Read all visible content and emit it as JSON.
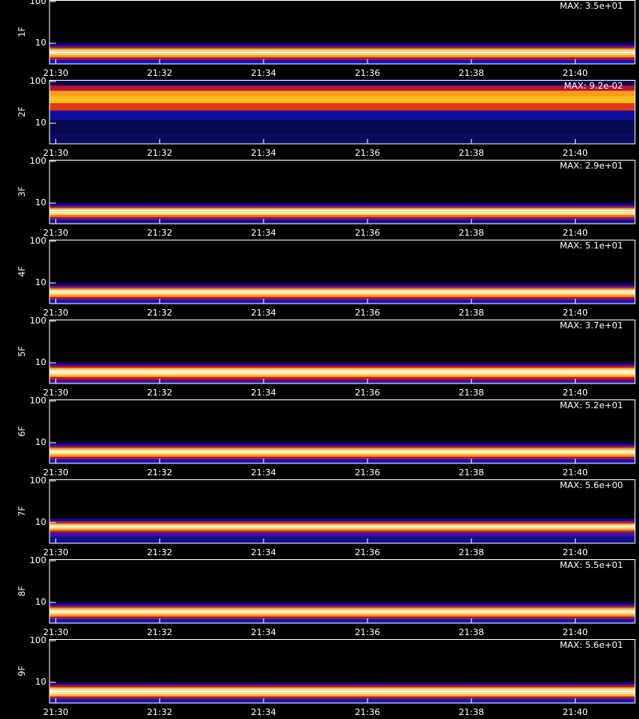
{
  "chart_data": [
    {
      "type": "heatmap",
      "ylabel": "1F",
      "annotation": "MAX: 3.5e+01",
      "log_y": true,
      "ylim": [
        3.2,
        109
      ],
      "yticks": [
        {
          "value": 10,
          "label": "10"
        },
        {
          "value": 100,
          "label": "100"
        }
      ],
      "xlim": [
        -0.12,
        11.15
      ],
      "xticks": [
        {
          "value": 0,
          "label": "21:30"
        },
        {
          "value": 2,
          "label": "21:32"
        },
        {
          "value": 4,
          "label": "21:34"
        },
        {
          "value": 6,
          "label": "21:36"
        },
        {
          "value": 8,
          "label": "21:38"
        },
        {
          "value": 10,
          "label": "21:40"
        }
      ],
      "ybins": [
        3.2,
        4,
        4.6,
        5.2,
        5.8,
        6.4,
        7,
        7.6,
        8.4,
        9.2,
        10.5,
        109
      ],
      "values": [
        0.25,
        0.45,
        0.7,
        0.85,
        1.0,
        0.9,
        0.7,
        0.45,
        0.25,
        0.1,
        0
      ]
    },
    {
      "type": "heatmap",
      "ylabel": "2F",
      "annotation": "MAX: 9.2e-02",
      "log_y": true,
      "ylim": [
        3.2,
        109
      ],
      "yticks": [
        {
          "value": 10,
          "label": "10"
        },
        {
          "value": 100,
          "label": "100"
        }
      ],
      "xlim": [
        -0.12,
        11.15
      ],
      "xticks": [
        {
          "value": 0,
          "label": "21:30"
        },
        {
          "value": 2,
          "label": "21:32"
        },
        {
          "value": 4,
          "label": "21:34"
        },
        {
          "value": 6,
          "label": "21:36"
        },
        {
          "value": 8,
          "label": "21:38"
        },
        {
          "value": 10,
          "label": "21:40"
        }
      ],
      "ybins": [
        3.2,
        6,
        12,
        20,
        30,
        45,
        60,
        80,
        109
      ],
      "values": [
        0.12,
        0.1,
        0.2,
        0.55,
        0.75,
        0.7,
        0.45,
        0.1
      ]
    },
    {
      "type": "heatmap",
      "ylabel": "3F",
      "annotation": "MAX: 2.9e+01",
      "log_y": true,
      "ylim": [
        3.2,
        109
      ],
      "yticks": [
        {
          "value": 10,
          "label": "10"
        },
        {
          "value": 100,
          "label": "100"
        }
      ],
      "xlim": [
        -0.12,
        11.15
      ],
      "xticks": [
        {
          "value": 0,
          "label": "21:30"
        },
        {
          "value": 2,
          "label": "21:32"
        },
        {
          "value": 4,
          "label": "21:34"
        },
        {
          "value": 6,
          "label": "21:36"
        },
        {
          "value": 8,
          "label": "21:38"
        },
        {
          "value": 10,
          "label": "21:40"
        }
      ],
      "ybins": [
        3.2,
        4,
        4.6,
        5.2,
        5.8,
        6.4,
        7,
        7.6,
        8.4,
        9.2,
        10.5,
        109
      ],
      "values": [
        0.2,
        0.4,
        0.65,
        0.85,
        0.95,
        1.0,
        0.75,
        0.45,
        0.25,
        0.1,
        0
      ]
    },
    {
      "type": "heatmap",
      "ylabel": "4F",
      "annotation": "MAX: 5.1e+01",
      "log_y": true,
      "ylim": [
        3.2,
        109
      ],
      "yticks": [
        {
          "value": 10,
          "label": "10"
        },
        {
          "value": 100,
          "label": "100"
        }
      ],
      "xlim": [
        -0.12,
        11.15
      ],
      "xticks": [
        {
          "value": 0,
          "label": "21:30"
        },
        {
          "value": 2,
          "label": "21:32"
        },
        {
          "value": 4,
          "label": "21:34"
        },
        {
          "value": 6,
          "label": "21:36"
        },
        {
          "value": 8,
          "label": "21:38"
        },
        {
          "value": 10,
          "label": "21:40"
        }
      ],
      "ybins": [
        3.2,
        4,
        4.6,
        5.2,
        5.8,
        6.4,
        7,
        7.6,
        8.4,
        9.2,
        10.5,
        109
      ],
      "values": [
        0.25,
        0.45,
        0.7,
        0.85,
        1.0,
        0.9,
        0.65,
        0.4,
        0.2,
        0.08,
        0
      ]
    },
    {
      "type": "heatmap",
      "ylabel": "5F",
      "annotation": "MAX: 3.7e+01",
      "log_y": true,
      "ylim": [
        3.2,
        109
      ],
      "yticks": [
        {
          "value": 10,
          "label": "10"
        },
        {
          "value": 100,
          "label": "100"
        }
      ],
      "xlim": [
        -0.12,
        11.15
      ],
      "xticks": [
        {
          "value": 0,
          "label": "21:30"
        },
        {
          "value": 2,
          "label": "21:32"
        },
        {
          "value": 4,
          "label": "21:34"
        },
        {
          "value": 6,
          "label": "21:36"
        },
        {
          "value": 8,
          "label": "21:38"
        },
        {
          "value": 10,
          "label": "21:40"
        }
      ],
      "ybins": [
        3.2,
        4,
        4.6,
        5.2,
        5.8,
        6.4,
        7,
        7.6,
        8.4,
        9.2,
        10.5,
        109
      ],
      "values": [
        0.3,
        0.5,
        0.75,
        0.9,
        1.0,
        0.95,
        0.75,
        0.5,
        0.3,
        0.12,
        0
      ]
    },
    {
      "type": "heatmap",
      "ylabel": "6F",
      "annotation": "MAX: 5.2e+01",
      "log_y": true,
      "ylim": [
        3.2,
        109
      ],
      "yticks": [
        {
          "value": 10,
          "label": "10"
        },
        {
          "value": 100,
          "label": "100"
        }
      ],
      "xlim": [
        -0.12,
        11.15
      ],
      "xticks": [
        {
          "value": 0,
          "label": "21:30"
        },
        {
          "value": 2,
          "label": "21:32"
        },
        {
          "value": 4,
          "label": "21:34"
        },
        {
          "value": 6,
          "label": "21:36"
        },
        {
          "value": 8,
          "label": "21:38"
        },
        {
          "value": 10,
          "label": "21:40"
        }
      ],
      "ybins": [
        3.2,
        4,
        4.6,
        5.2,
        5.8,
        6.4,
        7,
        7.6,
        8.4,
        9.2,
        10.5,
        109
      ],
      "values": [
        0.25,
        0.45,
        0.7,
        0.85,
        1.0,
        0.9,
        0.7,
        0.45,
        0.25,
        0.1,
        0
      ]
    },
    {
      "type": "heatmap",
      "ylabel": "7F",
      "annotation": "MAX: 5.6e+00",
      "log_y": true,
      "ylim": [
        3.2,
        109
      ],
      "yticks": [
        {
          "value": 10,
          "label": "10"
        },
        {
          "value": 100,
          "label": "100"
        }
      ],
      "xlim": [
        -0.12,
        11.15
      ],
      "xticks": [
        {
          "value": 0,
          "label": "21:30"
        },
        {
          "value": 2,
          "label": "21:32"
        },
        {
          "value": 4,
          "label": "21:34"
        },
        {
          "value": 6,
          "label": "21:36"
        },
        {
          "value": 8,
          "label": "21:38"
        },
        {
          "value": 10,
          "label": "21:40"
        }
      ],
      "ybins": [
        3.2,
        4.6,
        5.8,
        6.4,
        7,
        7.6,
        8.4,
        9.2,
        10,
        11,
        12.5,
        109
      ],
      "values": [
        0.18,
        0.3,
        0.5,
        0.7,
        0.85,
        1.0,
        0.85,
        0.6,
        0.4,
        0.2,
        0
      ]
    },
    {
      "type": "heatmap",
      "ylabel": "8F",
      "annotation": "MAX: 5.5e+01",
      "log_y": true,
      "ylim": [
        3.2,
        109
      ],
      "yticks": [
        {
          "value": 10,
          "label": "10"
        },
        {
          "value": 100,
          "label": "100"
        }
      ],
      "xlim": [
        -0.12,
        11.15
      ],
      "xticks": [
        {
          "value": 0,
          "label": "21:30"
        },
        {
          "value": 2,
          "label": "21:32"
        },
        {
          "value": 4,
          "label": "21:34"
        },
        {
          "value": 6,
          "label": "21:36"
        },
        {
          "value": 8,
          "label": "21:38"
        },
        {
          "value": 10,
          "label": "21:40"
        }
      ],
      "ybins": [
        3.2,
        4,
        4.6,
        5.2,
        5.8,
        6.4,
        7,
        7.6,
        8.4,
        9.2,
        10.5,
        109
      ],
      "values": [
        0.25,
        0.45,
        0.7,
        0.85,
        1.0,
        0.9,
        0.7,
        0.45,
        0.25,
        0.1,
        0
      ]
    },
    {
      "type": "heatmap",
      "ylabel": "9F",
      "annotation": "MAX: 5.6e+01",
      "log_y": true,
      "ylim": [
        3.2,
        109
      ],
      "yticks": [
        {
          "value": 10,
          "label": "10"
        },
        {
          "value": 100,
          "label": "100"
        }
      ],
      "xlim": [
        -0.12,
        11.15
      ],
      "xticks": [
        {
          "value": 0,
          "label": "21:30"
        },
        {
          "value": 2,
          "label": "21:32"
        },
        {
          "value": 4,
          "label": "21:34"
        },
        {
          "value": 6,
          "label": "21:36"
        },
        {
          "value": 8,
          "label": "21:38"
        },
        {
          "value": 10,
          "label": "21:40"
        }
      ],
      "ybins": [
        3.2,
        4,
        4.6,
        5.2,
        5.8,
        6.4,
        7,
        7.6,
        8.4,
        9.2,
        10.5,
        109
      ],
      "values": [
        0.25,
        0.45,
        0.75,
        0.9,
        1.0,
        0.95,
        0.75,
        0.5,
        0.3,
        0.1,
        0
      ]
    }
  ]
}
